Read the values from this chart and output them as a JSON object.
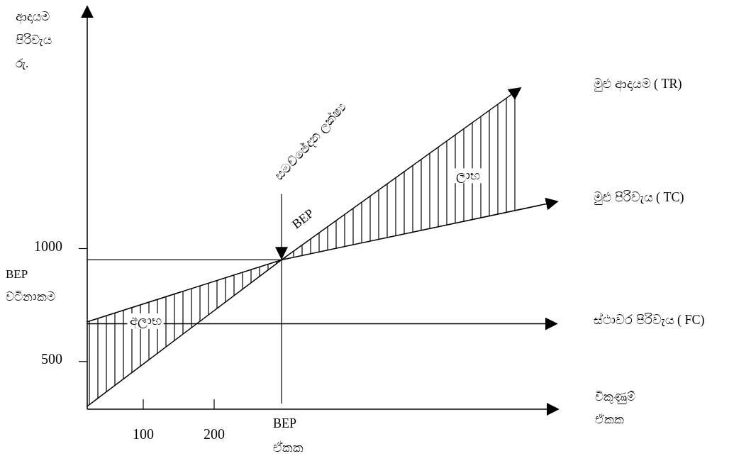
{
  "chart_data": {
    "type": "line",
    "xlabel": "විකුණුම් ඒකක",
    "ylabel": "ආදායම පිරිවැය රු.",
    "xlim": [
      21,
      685
    ],
    "ylim": [
      289,
      2072
    ],
    "xticks": [
      100,
      200
    ],
    "yticks": [
      500,
      1000
    ],
    "series": [
      {
        "name": "මුළු ආදායම ( TR)",
        "color": "#000000",
        "x": [
          21,
          295,
          632
        ],
        "values": [
          302,
          950,
          1711
        ],
        "lower": [
          302,
          950,
          1174
        ],
        "upper": [
          676,
          950,
          1711
        ]
      },
      {
        "name": "මුළු පිරිවැය ( TC)",
        "color": "#000000",
        "x": [
          21,
          295,
          684
        ],
        "values": [
          676,
          950,
          1208
        ]
      },
      {
        "name": "ස්ථාවර පිරිවැය ( FC)",
        "color": "#000000",
        "x": [
          21,
          683
        ],
        "values": [
          667,
          667
        ]
      }
    ],
    "ref_lines": [
      {
        "axis": "x",
        "value": 295,
        "label": "BEP ඒකක"
      },
      {
        "axis": "y",
        "value": 950,
        "label": "BEP වටිනාකම"
      }
    ],
    "annotations": [
      "සමච්ඡේදන ලක්ෂ්‍ය",
      {
        "text": "BEP",
        "x": 295,
        "y": 950
      },
      {
        "text": "අලාභ",
        "x": 103,
        "y": 682
      },
      {
        "text": "ලාභ",
        "x": 558,
        "y": 1324
      }
    ]
  }
}
